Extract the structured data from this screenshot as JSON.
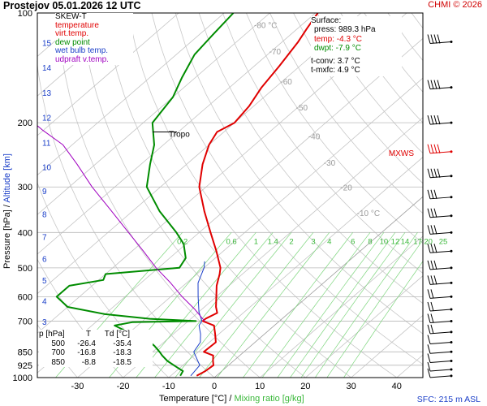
{
  "header": {
    "title": "Prostejov   05.01.2026 12 UTC",
    "copyright": "CHMI © 2026",
    "sfc_elevation": "SFC: 215 m ASL"
  },
  "legend": {
    "title": "SKEW-T",
    "items": [
      {
        "label": "temperature",
        "color": "#e00000"
      },
      {
        "label": "virt.temp.",
        "color": "#e00000"
      },
      {
        "label": "dew point",
        "color": "#008c00"
      },
      {
        "label": "wet bulb temp.",
        "color": "#1a3ec8"
      },
      {
        "label": "udpraft v.temp.",
        "color": "#a000c0"
      }
    ]
  },
  "surface": {
    "heading": "Surface:",
    "press": "press: 989.3 hPa",
    "temp": "temp: -4.3 °C",
    "dwpt": "dwpt: -7.9 °C",
    "tconv": "t-conv: 3.7 °C",
    "tmxfc": "t-mxfc: 4.9 °C"
  },
  "table": {
    "headers": [
      "p [hPa]",
      "T",
      "Td [°C]"
    ],
    "rows": [
      [
        "500",
        "-26.4",
        "-35.4"
      ],
      [
        "700",
        "-16.8",
        "-18.3"
      ],
      [
        "850",
        "-8.8",
        "-18.5"
      ]
    ]
  },
  "axes": {
    "xlabel_temp": "Temperature [°C]",
    "xlabel_sep": "/",
    "xlabel_mix": "Mixing ratio [g/kg]",
    "ylabel_pressure": "Pressure [hPa]",
    "ylabel_sep": "/",
    "ylabel_alt": "Altitude [km]"
  },
  "chart_data": {
    "type": "line",
    "title": "Prostejov   05.01.2026 12 UTC",
    "xlabel": "Temperature [°C] / Mixing ratio [g/kg]",
    "ylabel": "Pressure [hPa] / Altitude [km]",
    "x_ticks": [
      -30,
      -20,
      -10,
      0,
      10,
      20,
      30,
      40
    ],
    "x_tick_labels": [
      "-30",
      "-20",
      "-10",
      "0",
      "10",
      "20",
      "30",
      "40"
    ],
    "y_ticks": [
      100,
      200,
      300,
      400,
      500,
      600,
      700,
      850,
      925,
      1000
    ],
    "y_tick_labels": [
      "100",
      "200",
      "300",
      "400",
      "500",
      "600",
      "700",
      "850",
      "925",
      "1000"
    ],
    "ylim": [
      1000,
      100
    ],
    "y_scale": "log",
    "altitude_ticks": [
      1,
      2,
      3,
      4,
      5,
      6,
      7,
      8,
      9,
      10,
      11,
      12,
      13,
      14,
      15
    ],
    "altitude_tick_labels": [
      "1",
      "2",
      "3",
      "4",
      "5",
      "6",
      "7",
      "8",
      "9",
      "10",
      "11",
      "12",
      "13",
      "14",
      "15"
    ],
    "isotherm_labels": [
      {
        "t": -80,
        "label": "-80 °C",
        "p": 110
      },
      {
        "t": -70,
        "label": "-70",
        "p": 130
      },
      {
        "t": -60,
        "label": "-60",
        "p": 157
      },
      {
        "t": -50,
        "label": "-50",
        "p": 185
      },
      {
        "t": -40,
        "label": "-40",
        "p": 222
      },
      {
        "t": -30,
        "label": "-30",
        "p": 262
      },
      {
        "t": -20,
        "label": "-20",
        "p": 307
      },
      {
        "t": -10,
        "label": "-10 °C",
        "p": 360
      }
    ],
    "mixing_ratio_labels": [
      "0.2",
      "0.6",
      "1",
      "1.4",
      "2",
      "3",
      "4",
      "6",
      "8",
      "10",
      "12",
      "14",
      "17",
      "20",
      "25"
    ],
    "mixing_ratio_values": [
      0.2,
      0.6,
      1,
      1.4,
      2,
      3,
      4,
      6,
      8,
      10,
      12,
      14,
      17,
      20,
      25
    ],
    "tropopause": {
      "label": "Tropo",
      "p": 212
    },
    "mxws": {
      "label": "MXWS",
      "p": 243
    },
    "series": [
      {
        "name": "temperature",
        "color": "#e00000",
        "points": [
          [
            989,
            -4.3
          ],
          [
            960,
            -3.6
          ],
          [
            925,
            -3.3
          ],
          [
            900,
            -4.5
          ],
          [
            870,
            -5.8
          ],
          [
            850,
            -8.8
          ],
          [
            800,
            -8.6
          ],
          [
            760,
            -10.8
          ],
          [
            720,
            -13.2
          ],
          [
            700,
            -16.8
          ],
          [
            690,
            -16.8
          ],
          [
            665,
            -15.7
          ],
          [
            640,
            -17.5
          ],
          [
            600,
            -20.0
          ],
          [
            560,
            -22.7
          ],
          [
            520,
            -25.0
          ],
          [
            500,
            -26.4
          ],
          [
            450,
            -31.5
          ],
          [
            400,
            -37.5
          ],
          [
            350,
            -44.2
          ],
          [
            300,
            -51.5
          ],
          [
            260,
            -56.5
          ],
          [
            230,
            -60.0
          ],
          [
            212,
            -61.5
          ],
          [
            200,
            -60.0
          ],
          [
            180,
            -61.0
          ],
          [
            160,
            -63.0
          ],
          [
            140,
            -64.5
          ],
          [
            120,
            -66.5
          ],
          [
            110,
            -68.0
          ],
          [
            100,
            -69.5
          ]
        ]
      },
      {
        "name": "dew point",
        "color": "#008c00",
        "points": [
          [
            989,
            -7.9
          ],
          [
            960,
            -8.5
          ],
          [
            930,
            -11.5
          ],
          [
            900,
            -14.5
          ],
          [
            870,
            -17.0
          ],
          [
            850,
            -18.5
          ],
          [
            820,
            -21.0
          ],
          [
            790,
            -24.0
          ],
          [
            760,
            -29.0
          ],
          [
            720,
            -35.0
          ],
          [
            705,
            -32.0
          ],
          [
            700,
            -18.3
          ],
          [
            690,
            -29.0
          ],
          [
            670,
            -40.0
          ],
          [
            640,
            -50.0
          ],
          [
            600,
            -55.0
          ],
          [
            560,
            -55.0
          ],
          [
            540,
            -49.0
          ],
          [
            520,
            -50.0
          ],
          [
            500,
            -35.4
          ],
          [
            470,
            -36.5
          ],
          [
            430,
            -40.5
          ],
          [
            400,
            -45.0
          ],
          [
            350,
            -54.0
          ],
          [
            300,
            -63.0
          ],
          [
            260,
            -68.0
          ],
          [
            230,
            -72.0
          ],
          [
            200,
            -78.0
          ],
          [
            170,
            -80.0
          ],
          [
            150,
            -83.0
          ],
          [
            130,
            -86.0
          ],
          [
            115,
            -87.0
          ],
          [
            100,
            -88.0
          ]
        ]
      },
      {
        "name": "wet bulb temp.",
        "color": "#1a3ec8",
        "points": [
          [
            989,
            -5.6
          ],
          [
            925,
            -6.3
          ],
          [
            850,
            -11.0
          ],
          [
            800,
            -12.0
          ],
          [
            760,
            -14.0
          ],
          [
            720,
            -16.5
          ],
          [
            700,
            -17.0
          ],
          [
            660,
            -20.0
          ],
          [
            600,
            -24.0
          ],
          [
            550,
            -27.5
          ],
          [
            500,
            -30.0
          ],
          [
            480,
            -31.5
          ]
        ]
      },
      {
        "name": "udpraft v.temp.",
        "color": "#a000c0",
        "points": [
          [
            700,
            -16.4
          ],
          [
            650,
            -21.5
          ],
          [
            600,
            -27.5
          ],
          [
            550,
            -33.5
          ],
          [
            500,
            -40.5
          ],
          [
            450,
            -47.5
          ],
          [
            400,
            -55.5
          ],
          [
            350,
            -64.5
          ],
          [
            300,
            -75.0
          ],
          [
            260,
            -84.0
          ],
          [
            230,
            -92.0
          ],
          [
            210,
            -100.0
          ],
          [
            200,
            -104.0
          ]
        ]
      }
    ],
    "wind_barbs_p": [
      120,
      160,
      200,
      240,
      280,
      320,
      360,
      400,
      450,
      500,
      550,
      600,
      650,
      700,
      750,
      800,
      850,
      900,
      950,
      989
    ]
  }
}
